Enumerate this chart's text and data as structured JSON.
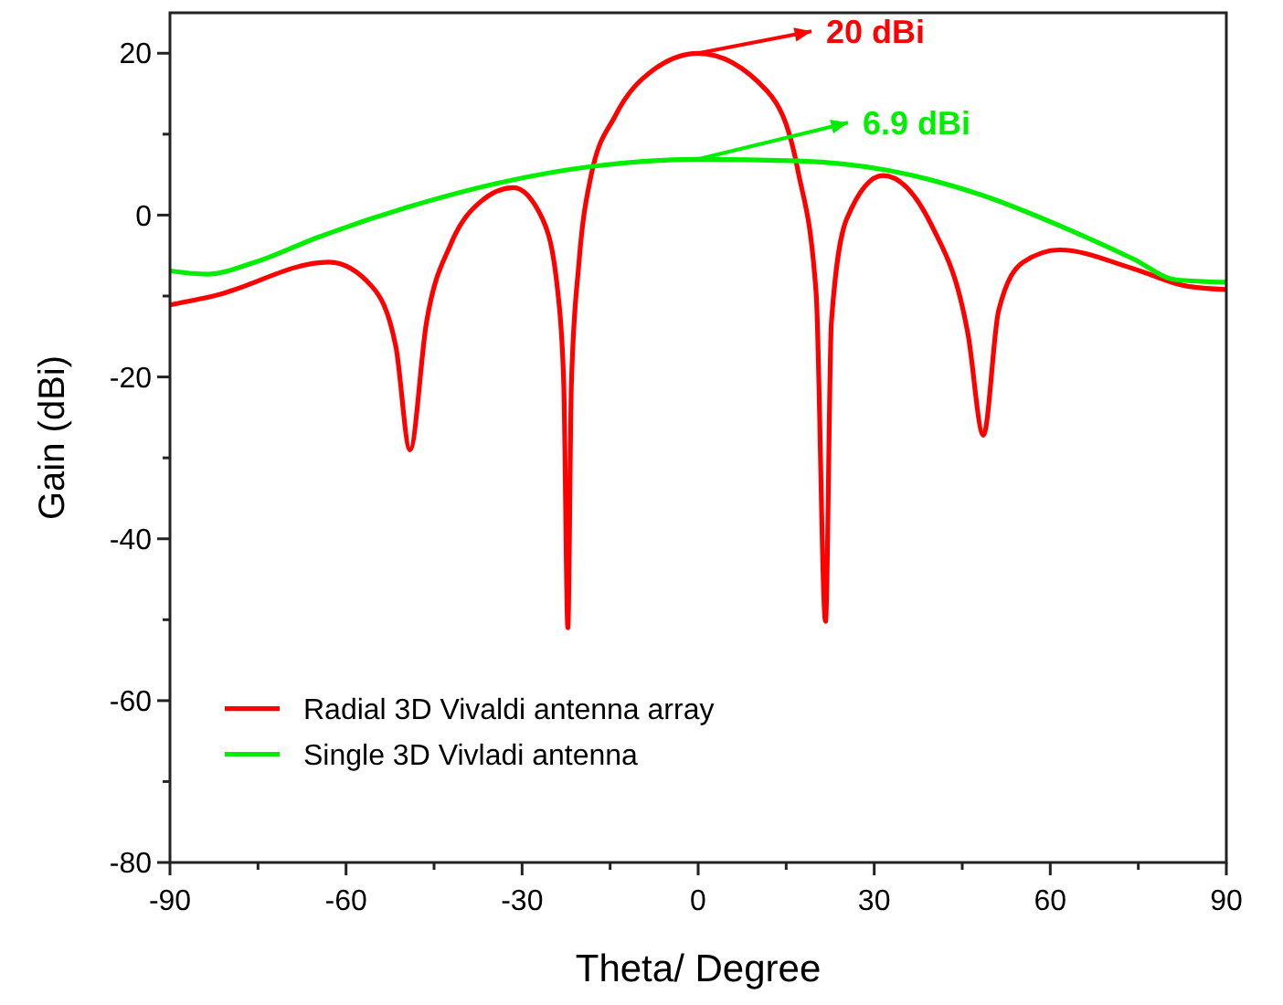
{
  "chart_data": {
    "type": "line",
    "xlabel": "Theta/ Degree",
    "ylabel": "Gain (dBi)",
    "xlim": [
      -90,
      90
    ],
    "ylim": [
      -80,
      25
    ],
    "xticks": [
      -90,
      {
        "value": -75,
        "label": null
      },
      -60,
      {
        "value": -45,
        "label": null
      },
      -30,
      {
        "value": -15,
        "label": null
      },
      0,
      {
        "value": 15,
        "label": null
      },
      30,
      {
        "value": 45,
        "label": null
      },
      60,
      {
        "value": 75,
        "label": null
      },
      90
    ],
    "yticks": [
      -80,
      {
        "value": -70,
        "label": null
      },
      -60,
      {
        "value": -50,
        "label": null
      },
      -40,
      {
        "value": -30,
        "label": null
      },
      -20,
      {
        "value": -10,
        "label": null
      },
      0,
      {
        "value": 10,
        "label": null
      },
      20
    ],
    "grid": false,
    "legend": "bottom left",
    "marker": "none",
    "line_style": "solid",
    "series": [
      {
        "name": "Radial 3D Vivaldi antenna array",
        "color": "#ff0000",
        "x": [
          -90,
          -82.6,
          -62.9,
          -55.6,
          -51.5,
          -49.1,
          -46.3,
          -42.1,
          -37,
          -31.5,
          -26.5,
          -23.9,
          -22.9,
          -22.2,
          -21.6,
          -20.3,
          -18.3,
          -14.1,
          -7.9,
          0,
          11.8,
          17,
          20.1,
          21.7,
          22.7,
          25.3,
          31.5,
          39.8,
          46,
          48.6,
          51.2,
          55.4,
          61.6,
          74.1,
          83.4,
          90
        ],
        "values": [
          -11.1,
          -10,
          -5.8,
          -8.8,
          -16.3,
          -29,
          -13.3,
          -3.5,
          1.7,
          3.4,
          -0.5,
          -9.6,
          -20.9,
          -51,
          -20.9,
          -5.8,
          4.7,
          12.3,
          17.8,
          20,
          15.3,
          5.5,
          -9.6,
          -50.2,
          -13.3,
          -0.5,
          4.9,
          -1.3,
          -14.8,
          -27.2,
          -11.8,
          -5.8,
          -4.3,
          -6.6,
          -8.8,
          -9.2
        ]
      },
      {
        "name": "Single 3D Vivladi antenna",
        "color": "#00ee00",
        "x": [
          -90,
          -83.7,
          -75.4,
          -65,
          -49.4,
          -33.8,
          -18.3,
          0,
          17,
          32.6,
          48.2,
          63.8,
          74.1,
          81.4,
          90
        ],
        "values": [
          -6.9,
          -7.3,
          -5.8,
          -2.8,
          1,
          4,
          6,
          6.9,
          6.7,
          5.5,
          2.5,
          -2,
          -5.4,
          -8,
          -8.3
        ]
      }
    ],
    "annotations": [
      {
        "text": "20 dBi",
        "x": 0,
        "y": 20
      },
      {
        "text": "6.9 dBi",
        "x": 0,
        "y": 6.9
      }
    ]
  }
}
